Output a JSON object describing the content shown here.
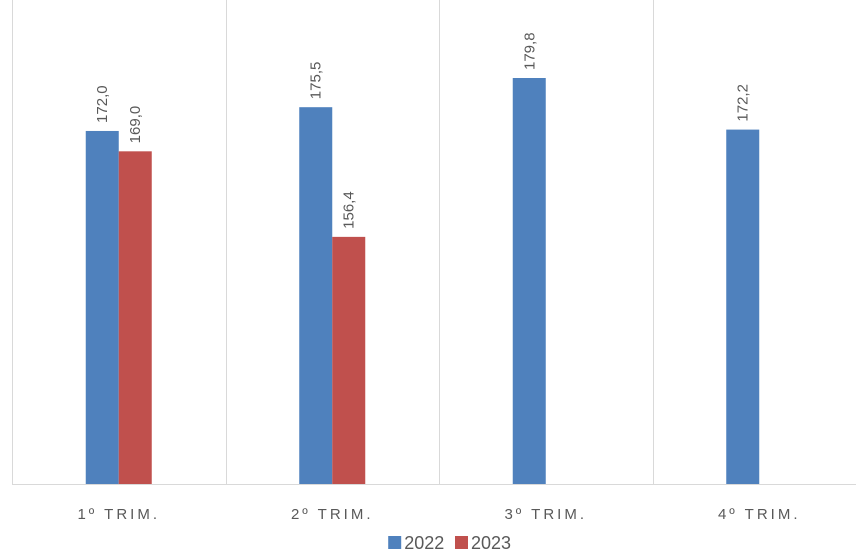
{
  "chart_data": {
    "type": "bar",
    "categories": [
      "1º TRIM.",
      "2º TRIM.",
      "3º TRIM.",
      "4º TRIM."
    ],
    "series": [
      {
        "name": "2022",
        "values": [
          172.0,
          175.5,
          179.8,
          172.2
        ],
        "labels": [
          "172,0",
          "175,5",
          "179,8",
          "172,2"
        ],
        "color": "#4F81BD"
      },
      {
        "name": "2023",
        "values": [
          169.0,
          156.4,
          null,
          null
        ],
        "labels": [
          "169,0",
          "156,4",
          "",
          ""
        ],
        "color": "#C0504D"
      }
    ],
    "ylim": [
      120,
      185
    ],
    "grid": "vertical-category-separators",
    "legend_position": "bottom-center",
    "title": "",
    "xlabel": "",
    "ylabel": ""
  }
}
